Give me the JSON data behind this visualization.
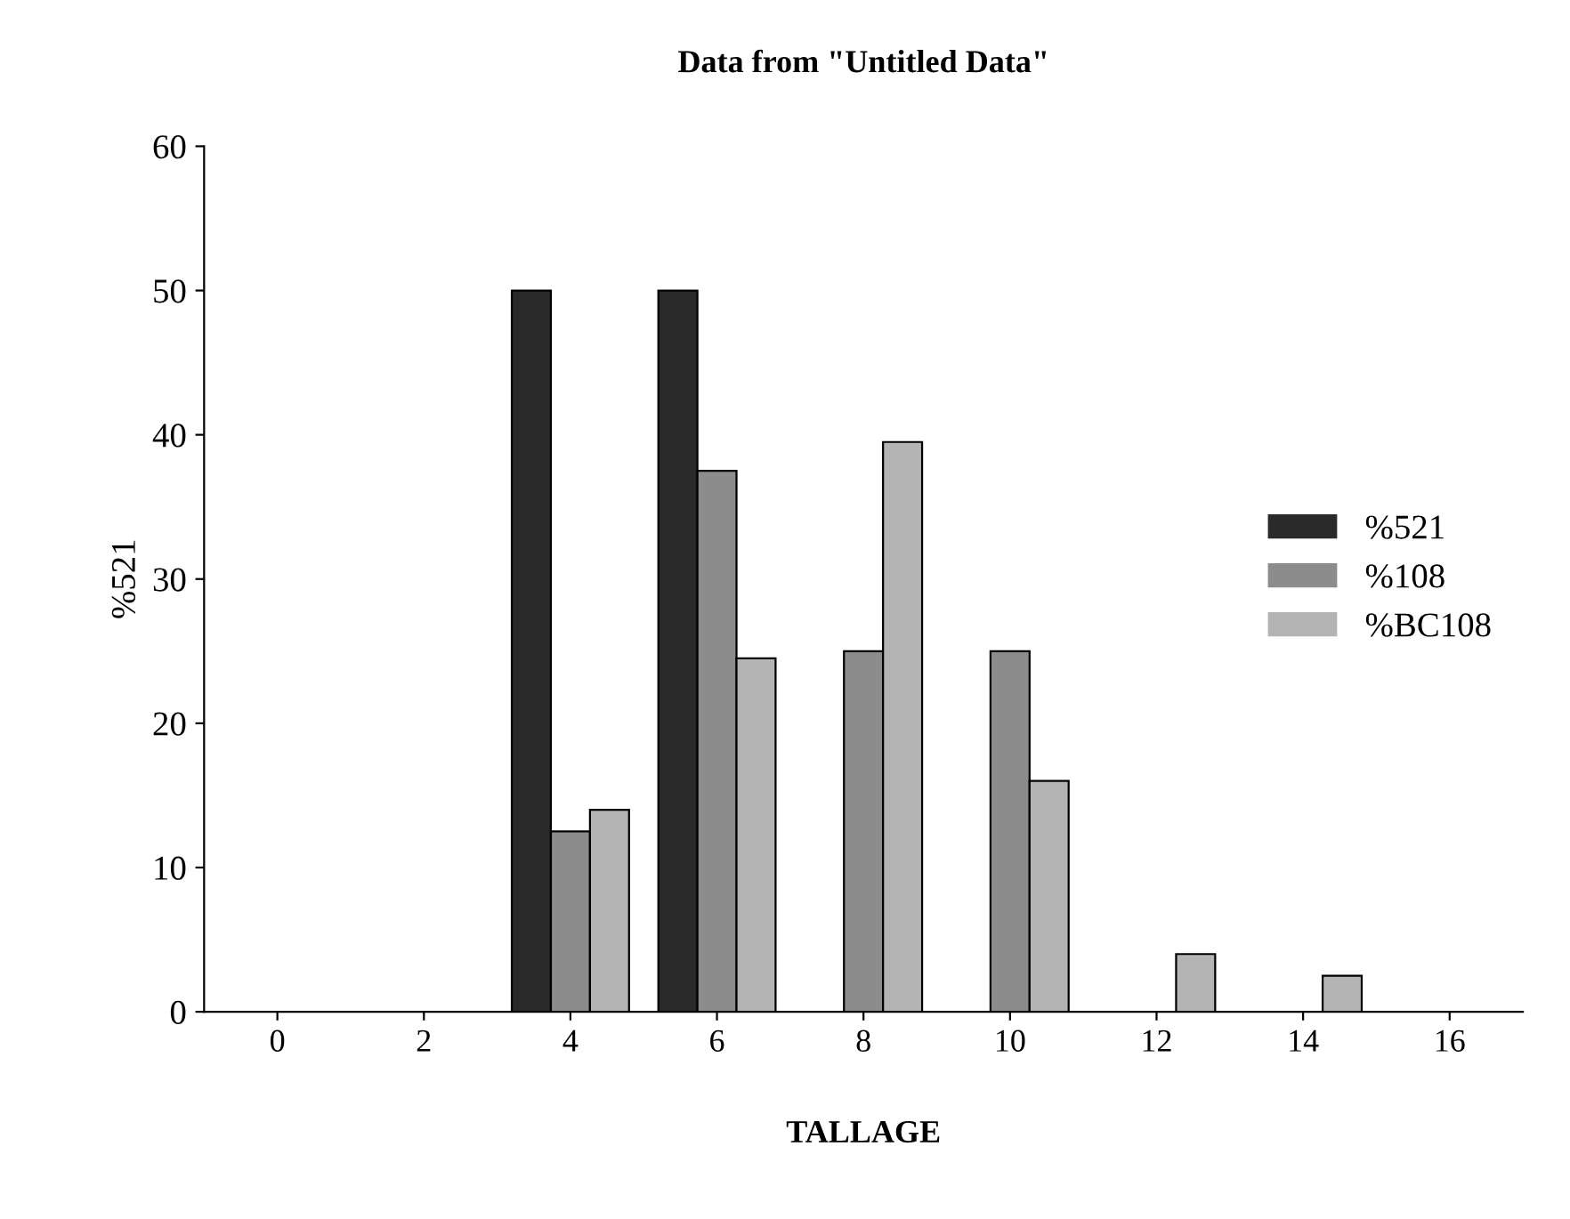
{
  "chart_data": {
    "type": "bar",
    "title": "Data from \"Untitled Data\"",
    "xlabel": "TALLAGE",
    "ylabel": "%521",
    "categories": [
      "0",
      "2",
      "4",
      "6",
      "8",
      "10",
      "12",
      "14",
      "16"
    ],
    "series": [
      {
        "name": "%521",
        "color": "#2a2a2a",
        "values": [
          0,
          0,
          50,
          50,
          0,
          0,
          0,
          0,
          0
        ]
      },
      {
        "name": "%108",
        "color": "#8c8c8c",
        "values": [
          0,
          0,
          12.5,
          37.5,
          25,
          25,
          0,
          0,
          0
        ]
      },
      {
        "name": "%BC108",
        "color": "#b4b4b4",
        "values": [
          0,
          0,
          14,
          24.5,
          39.5,
          16,
          4,
          2.5,
          0
        ]
      }
    ],
    "ylim": [
      0,
      60
    ],
    "yticks": [
      0,
      10,
      20,
      30,
      40,
      50,
      60
    ],
    "grid": false,
    "legend": "right"
  }
}
